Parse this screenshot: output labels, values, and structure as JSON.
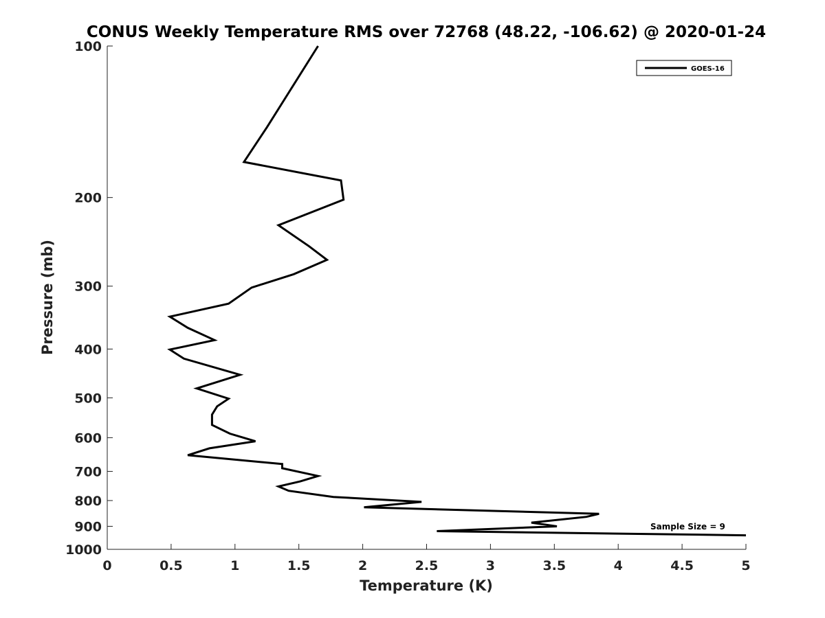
{
  "chart_data": {
    "type": "line",
    "title": "CONUS Weekly Temperature RMS over 72768 (48.22, -106.62) @ 2020-01-24",
    "xlabel": "Temperature (K)",
    "ylabel": "Pressure (mb)",
    "xlim": [
      0,
      5
    ],
    "ylim": [
      100,
      1000
    ],
    "y_scale": "log",
    "y_reversed": true,
    "x_ticks": [
      0,
      0.5,
      1,
      1.5,
      2,
      2.5,
      3,
      3.5,
      4,
      4.5,
      5
    ],
    "x_tick_labels": [
      "0",
      "0.5",
      "1",
      "1.5",
      "2",
      "2.5",
      "3",
      "3.5",
      "4",
      "4.5",
      "5"
    ],
    "y_ticks": [
      100,
      200,
      300,
      400,
      500,
      600,
      700,
      800,
      900,
      1000
    ],
    "y_tick_labels": [
      "100",
      "200",
      "300",
      "400",
      "500",
      "600",
      "700",
      "800",
      "900",
      "1000"
    ],
    "grid": false,
    "legend_position": "top-right",
    "line_color": "#000000",
    "series": [
      {
        "name": "GOES-16",
        "x": [
          1.65,
          1.41,
          1.25,
          1.07,
          1.83,
          1.85,
          1.34,
          1.58,
          1.72,
          1.46,
          1.13,
          0.95,
          0.49,
          0.63,
          0.84,
          0.49,
          0.6,
          1.04,
          0.7,
          0.95,
          0.86,
          0.82,
          0.82,
          0.96,
          1.16,
          0.8,
          0.63,
          1.37,
          1.37,
          1.65,
          1.51,
          1.34,
          1.42,
          1.77,
          2.46,
          2.01,
          3.85,
          3.75,
          3.32,
          3.52,
          2.58,
          5.0
        ],
        "y": [
          100,
          125,
          145,
          170,
          185,
          202,
          227,
          250,
          266,
          284,
          302,
          325,
          345,
          363,
          384,
          401,
          418,
          450,
          479,
          502,
          520,
          540,
          566,
          589,
          610,
          630,
          650,
          677,
          690,
          715,
          733,
          750,
          765,
          787,
          805,
          825,
          850,
          862,
          885,
          900,
          920,
          938
        ]
      }
    ],
    "annotations": [
      "Sample Size = 9"
    ]
  }
}
